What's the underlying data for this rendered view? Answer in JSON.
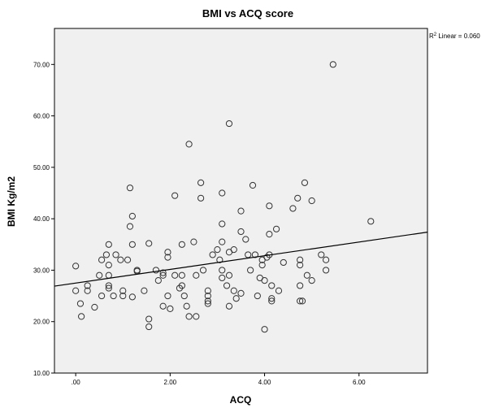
{
  "chart_data": {
    "type": "scatter",
    "title": "BMI vs ACQ score",
    "xlabel": "ACQ",
    "ylabel": "BMI Kg/m2",
    "xlim": [
      -0.45,
      7.45
    ],
    "ylim": [
      10,
      77
    ],
    "x_ticks": [
      0,
      2,
      4,
      6
    ],
    "x_tick_labels": [
      ".00",
      "2.00",
      "4.00",
      "6.00"
    ],
    "y_ticks": [
      10,
      20,
      30,
      40,
      50,
      60,
      70
    ],
    "y_tick_labels": [
      "10.00",
      "20.00",
      "30.00",
      "40.00",
      "50.00",
      "60.00",
      "70.00"
    ],
    "grid": false,
    "plot_background": "#f0f0f0",
    "marker_color": "#333333",
    "fit_line": {
      "label_prefix": "R",
      "label_superscript": "2",
      "label_suffix": " Linear = 0.060",
      "x": [
        -0.45,
        7.45
      ],
      "y": [
        26.9,
        37.4
      ]
    },
    "points": [
      [
        0.0,
        30.8
      ],
      [
        0.0,
        26.0
      ],
      [
        0.1,
        23.5
      ],
      [
        0.12,
        21.0
      ],
      [
        0.25,
        27.0
      ],
      [
        0.25,
        26.0
      ],
      [
        0.4,
        22.8
      ],
      [
        0.5,
        29.0
      ],
      [
        0.55,
        32.0
      ],
      [
        0.55,
        25.0
      ],
      [
        0.65,
        33.0
      ],
      [
        0.7,
        35.0
      ],
      [
        0.7,
        31.0
      ],
      [
        0.7,
        29.0
      ],
      [
        0.7,
        27.0
      ],
      [
        0.7,
        26.5
      ],
      [
        0.8,
        25.0
      ],
      [
        0.85,
        33.0
      ],
      [
        0.95,
        32.0
      ],
      [
        1.0,
        26.0
      ],
      [
        1.0,
        25.0
      ],
      [
        1.1,
        32.0
      ],
      [
        1.15,
        46.0
      ],
      [
        1.15,
        38.5
      ],
      [
        1.2,
        40.5
      ],
      [
        1.2,
        35.0
      ],
      [
        1.2,
        24.8
      ],
      [
        1.3,
        29.8
      ],
      [
        1.3,
        30.0
      ],
      [
        1.45,
        26.0
      ],
      [
        1.55,
        35.2
      ],
      [
        1.55,
        20.5
      ],
      [
        1.55,
        19.0
      ],
      [
        1.7,
        30.0
      ],
      [
        1.75,
        28.0
      ],
      [
        1.85,
        29.5
      ],
      [
        1.85,
        29.0
      ],
      [
        1.85,
        23.0
      ],
      [
        1.95,
        33.5
      ],
      [
        1.95,
        32.5
      ],
      [
        1.95,
        25.0
      ],
      [
        2.0,
        22.5
      ],
      [
        2.1,
        44.5
      ],
      [
        2.1,
        29.0
      ],
      [
        2.2,
        26.5
      ],
      [
        2.25,
        29.0
      ],
      [
        2.25,
        27.0
      ],
      [
        2.25,
        35.0
      ],
      [
        2.3,
        25.0
      ],
      [
        2.35,
        23.0
      ],
      [
        2.4,
        54.5
      ],
      [
        2.4,
        21.0
      ],
      [
        2.5,
        35.5
      ],
      [
        2.55,
        29.0
      ],
      [
        2.55,
        21.0
      ],
      [
        2.65,
        47.0
      ],
      [
        2.65,
        44.0
      ],
      [
        2.7,
        30.0
      ],
      [
        2.8,
        26.0
      ],
      [
        2.8,
        25.0
      ],
      [
        2.8,
        24.0
      ],
      [
        2.8,
        23.5
      ],
      [
        2.9,
        33.0
      ],
      [
        3.0,
        34.0
      ],
      [
        3.05,
        32.0
      ],
      [
        3.1,
        45.0
      ],
      [
        3.1,
        39.0
      ],
      [
        3.1,
        35.5
      ],
      [
        3.1,
        30.0
      ],
      [
        3.1,
        28.5
      ],
      [
        3.2,
        27.0
      ],
      [
        3.25,
        58.5
      ],
      [
        3.25,
        33.5
      ],
      [
        3.25,
        29.0
      ],
      [
        3.25,
        23.0
      ],
      [
        3.35,
        34.0
      ],
      [
        3.35,
        26.0
      ],
      [
        3.4,
        24.5
      ],
      [
        3.5,
        41.5
      ],
      [
        3.5,
        37.5
      ],
      [
        3.5,
        25.5
      ],
      [
        3.6,
        36.0
      ],
      [
        3.65,
        33.0
      ],
      [
        3.7,
        30.0
      ],
      [
        3.75,
        46.5
      ],
      [
        3.8,
        33.0
      ],
      [
        3.85,
        25.0
      ],
      [
        3.9,
        28.5
      ],
      [
        3.95,
        32.0
      ],
      [
        3.95,
        31.0
      ],
      [
        4.0,
        28.0
      ],
      [
        4.0,
        18.5
      ],
      [
        4.05,
        32.5
      ],
      [
        4.1,
        42.5
      ],
      [
        4.1,
        37.0
      ],
      [
        4.1,
        33.0
      ],
      [
        4.15,
        27.0
      ],
      [
        4.15,
        24.5
      ],
      [
        4.15,
        24.0
      ],
      [
        4.25,
        38.0
      ],
      [
        4.3,
        26.0
      ],
      [
        4.4,
        31.5
      ],
      [
        4.6,
        42.0
      ],
      [
        4.7,
        44.0
      ],
      [
        4.75,
        32.0
      ],
      [
        4.75,
        31.0
      ],
      [
        4.75,
        27.0
      ],
      [
        4.75,
        24.0
      ],
      [
        4.8,
        24.0
      ],
      [
        4.85,
        47.0
      ],
      [
        4.9,
        29.0
      ],
      [
        5.0,
        43.5
      ],
      [
        5.0,
        28.0
      ],
      [
        5.2,
        33.0
      ],
      [
        5.3,
        32.0
      ],
      [
        5.3,
        30.0
      ],
      [
        5.45,
        70.0
      ],
      [
        6.25,
        39.5
      ]
    ]
  }
}
